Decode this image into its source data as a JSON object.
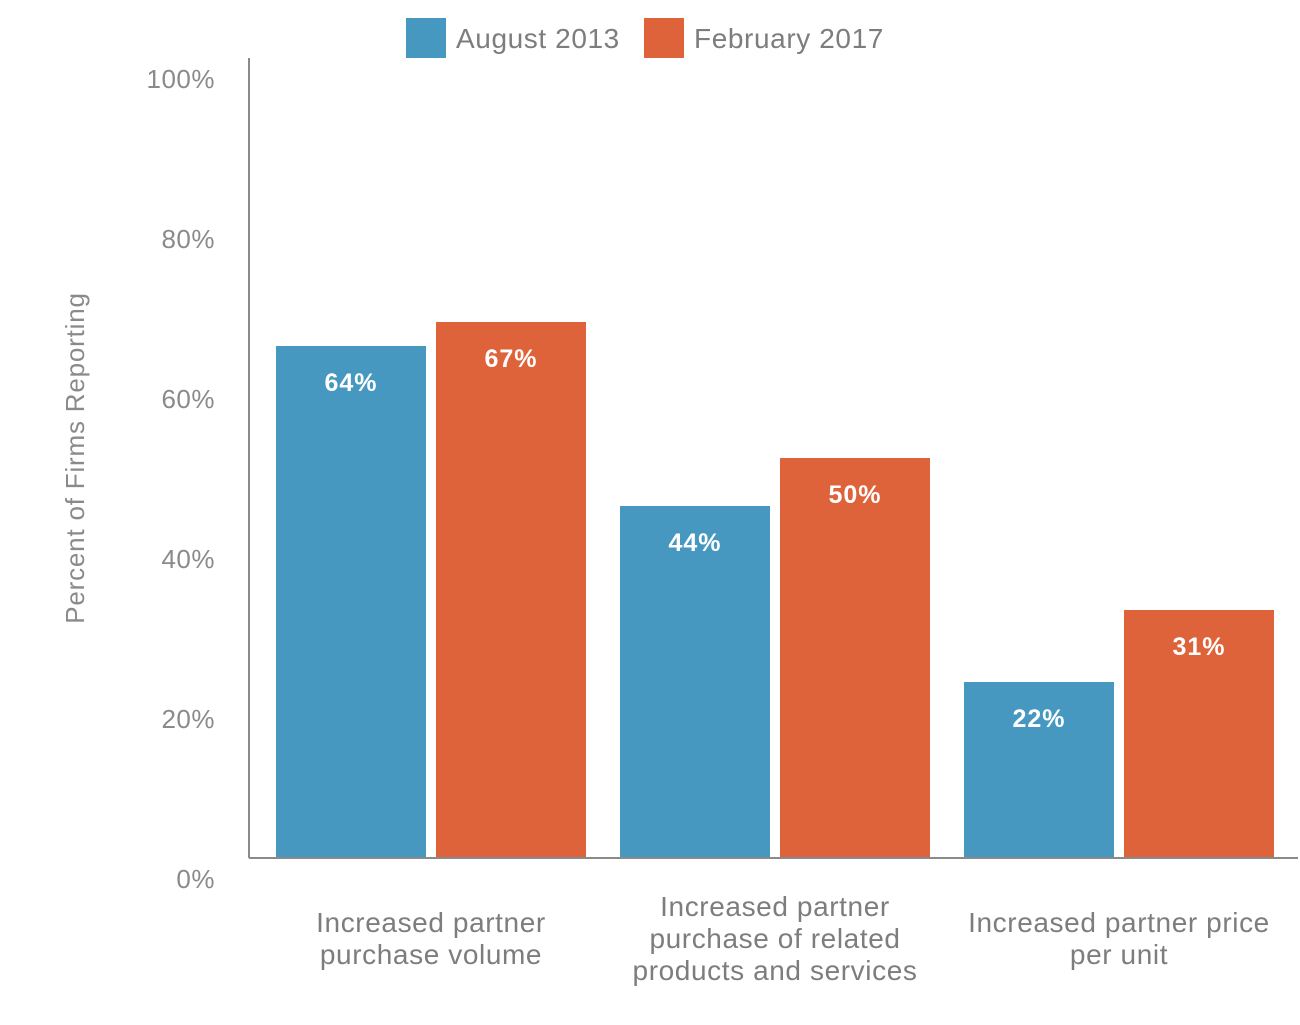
{
  "chart_data": {
    "type": "bar",
    "title": "",
    "xlabel": "",
    "ylabel": "Percent of Firms Reporting",
    "ylim": [
      0,
      100
    ],
    "yticks": [
      0,
      20,
      40,
      60,
      80,
      100
    ],
    "ytick_labels": [
      "0%",
      "20%",
      "40%",
      "60%",
      "80%",
      "100%"
    ],
    "grid": false,
    "legend_position": "top",
    "categories": [
      [
        "Increased partner",
        "purchase volume"
      ],
      [
        "Increased partner",
        "purchase of related",
        "products and services"
      ],
      [
        "Increased partner price",
        "per unit"
      ]
    ],
    "series": [
      {
        "name": "August 2013",
        "color": "#4698c1",
        "values": [
          64,
          44,
          22
        ],
        "value_labels": [
          "64%",
          "44%",
          "22%"
        ]
      },
      {
        "name": "February 2017",
        "color": "#df633a",
        "values": [
          67,
          50,
          31
        ],
        "value_labels": [
          "67%",
          "50%",
          "31%"
        ]
      }
    ]
  },
  "colors": {
    "axis": "#8a8a8a",
    "tick_text": "#8a8a8a",
    "label_text": "#7d7d7d",
    "bar_label_text": "#ffffff"
  }
}
